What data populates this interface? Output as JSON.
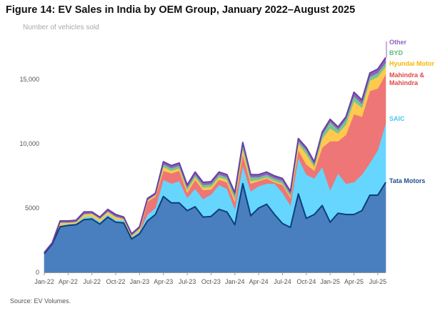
{
  "chart_data": {
    "type": "area",
    "stacked": true,
    "title": "Figure 14: EV Sales in India by OEM Group, January 2022–August 2025",
    "ylabel": "Number of vehicles sold",
    "xlabel": "",
    "ylim": [
      0,
      18000
    ],
    "yticks": [
      {
        "value": 0,
        "label": "0"
      },
      {
        "value": 5000,
        "label": "5000"
      },
      {
        "value": 10000,
        "label": "10,000"
      },
      {
        "value": 15000,
        "label": "15,000"
      }
    ],
    "xticks": [
      {
        "index": 0,
        "label": "Jan-22"
      },
      {
        "index": 3,
        "label": "Apr-22"
      },
      {
        "index": 6,
        "label": "Jul-22"
      },
      {
        "index": 9,
        "label": "Oct-22"
      },
      {
        "index": 12,
        "label": "Jan-23"
      },
      {
        "index": 15,
        "label": "Apr-23"
      },
      {
        "index": 18,
        "label": "Jul-23"
      },
      {
        "index": 21,
        "label": "Oct-23"
      },
      {
        "index": 24,
        "label": "Jan-24"
      },
      {
        "index": 27,
        "label": "Apr-24"
      },
      {
        "index": 30,
        "label": "Jul-24"
      },
      {
        "index": 33,
        "label": "Oct-24"
      },
      {
        "index": 36,
        "label": "Jan-25"
      },
      {
        "index": 39,
        "label": "Apr-25"
      },
      {
        "index": 42,
        "label": "Jul-25"
      }
    ],
    "categories": [
      "Jan-22",
      "Feb-22",
      "Mar-22",
      "Apr-22",
      "May-22",
      "Jun-22",
      "Jul-22",
      "Aug-22",
      "Sep-22",
      "Oct-22",
      "Nov-22",
      "Dec-22",
      "Jan-23",
      "Feb-23",
      "Mar-23",
      "Apr-23",
      "May-23",
      "Jun-23",
      "Jul-23",
      "Aug-23",
      "Sep-23",
      "Oct-23",
      "Nov-23",
      "Dec-23",
      "Jan-24",
      "Feb-24",
      "Mar-24",
      "Apr-24",
      "May-24",
      "Jun-24",
      "Jul-24",
      "Aug-24",
      "Sep-24",
      "Oct-24",
      "Nov-24",
      "Dec-24",
      "Jan-25",
      "Feb-25",
      "Mar-25",
      "Apr-25",
      "May-25",
      "Jun-25",
      "Jul-25",
      "Aug-25"
    ],
    "series": [
      {
        "name": "Tata Motors",
        "color": "#4a7fbf",
        "line": "#0b3f7a",
        "values": [
          1450,
          2200,
          3550,
          3650,
          3700,
          4100,
          4150,
          3750,
          4300,
          3900,
          3850,
          2600,
          3000,
          4000,
          4500,
          5900,
          5400,
          5400,
          4800,
          5100,
          4300,
          4350,
          4900,
          4700,
          3700,
          6900,
          4400,
          5000,
          5300,
          4500,
          3800,
          3500,
          6100,
          4200,
          4500,
          5200,
          3900,
          4600,
          4500,
          4500,
          4800,
          6000,
          6000,
          7000
        ]
      },
      {
        "name": "SAIC",
        "color": "#66d6ff",
        "values": [
          0,
          0,
          100,
          100,
          100,
          200,
          200,
          200,
          200,
          200,
          200,
          150,
          200,
          500,
          500,
          1300,
          1500,
          1700,
          1000,
          1400,
          1400,
          1700,
          1900,
          1800,
          1200,
          1400,
          1900,
          1700,
          1600,
          2400,
          2400,
          1700,
          2800,
          3400,
          2800,
          3000,
          2500,
          3100,
          2400,
          2500,
          2800,
          2500,
          3500,
          4600
        ]
      },
      {
        "name": "Mahindra & Mahindra",
        "color": "#ee7676",
        "values": [
          0,
          0,
          0,
          0,
          0,
          0,
          0,
          0,
          0,
          0,
          0,
          0,
          0,
          1000,
          900,
          700,
          800,
          800,
          400,
          700,
          700,
          400,
          400,
          500,
          600,
          900,
          600,
          400,
          400,
          100,
          600,
          600,
          600,
          800,
          600,
          1500,
          3800,
          2500,
          3800,
          5300,
          4500,
          5600,
          4800,
          3800
        ]
      },
      {
        "name": "Hyundai Motor",
        "color": "#ffc94d",
        "values": [
          0,
          0,
          200,
          100,
          100,
          200,
          200,
          200,
          200,
          200,
          100,
          100,
          200,
          100,
          100,
          300,
          200,
          200,
          200,
          200,
          200,
          200,
          200,
          200,
          200,
          400,
          200,
          100,
          100,
          100,
          100,
          100,
          500,
          800,
          300,
          700,
          1000,
          600,
          800,
          1000,
          700,
          800,
          900,
          600
        ]
      },
      {
        "name": "BYD",
        "color": "#78c490",
        "values": [
          0,
          0,
          50,
          50,
          50,
          50,
          50,
          50,
          50,
          50,
          50,
          50,
          50,
          50,
          50,
          200,
          200,
          200,
          200,
          200,
          200,
          200,
          200,
          200,
          300,
          300,
          300,
          200,
          200,
          200,
          200,
          200,
          200,
          300,
          200,
          300,
          500,
          300,
          400,
          400,
          300,
          300,
          300,
          300
        ]
      },
      {
        "name": "Other",
        "color": "#8e63bf",
        "line": "#6a3fa3",
        "values": [
          100,
          100,
          100,
          100,
          100,
          150,
          100,
          100,
          150,
          150,
          100,
          100,
          100,
          100,
          100,
          200,
          200,
          200,
          200,
          200,
          200,
          200,
          200,
          200,
          200,
          200,
          200,
          200,
          200,
          200,
          200,
          200,
          200,
          200,
          200,
          200,
          200,
          200,
          200,
          300,
          300,
          300,
          300,
          400
        ]
      }
    ],
    "legend": [
      "Other",
      "BYD",
      "Hyundai Motor",
      "Mahindra &",
      "Mahindra",
      "SAIC",
      "Tata Motors"
    ],
    "legend_placement": "right, aligned to series ends",
    "grid": false
  },
  "source": "Source: EV Volumes."
}
